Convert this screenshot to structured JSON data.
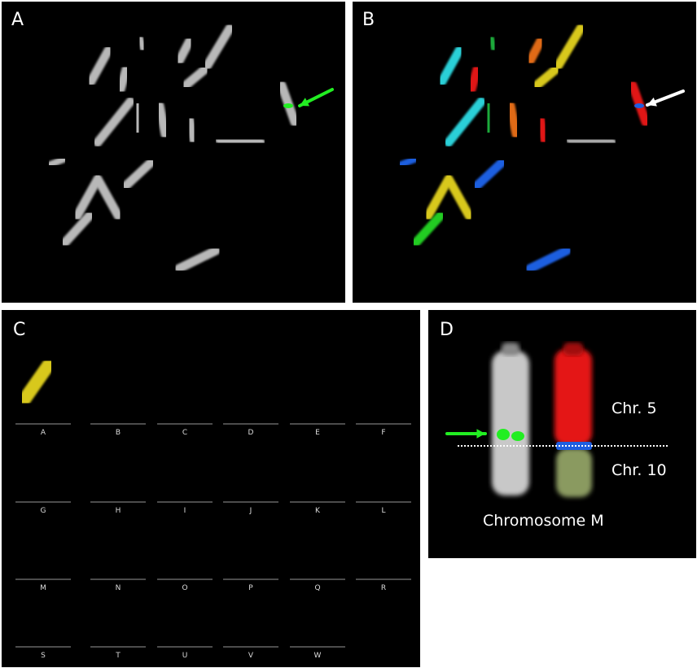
{
  "panels": {
    "a": {
      "label": "A",
      "arrow_color": "#22ee22"
    },
    "b": {
      "label": "B",
      "arrow_color": "#ffffff"
    },
    "c": {
      "label": "C",
      "karyotype": [
        {
          "label": "A",
          "colors": [
            "#d8c81a"
          ]
        },
        {
          "label": "B",
          "colors": [
            "#2ad0d8"
          ]
        },
        {
          "label": "C",
          "colors": [
            "#5a1e1e",
            "#1e6ad8"
          ]
        },
        {
          "label": "D",
          "colors": [
            "#2ad0d8"
          ]
        },
        {
          "label": "E",
          "colors": [
            "#1e5ee0",
            "#b0b0b0",
            "#22cc22"
          ]
        },
        {
          "label": "F",
          "colors": [
            "#a8a8a8"
          ]
        },
        {
          "label": "G",
          "colors": [
            "#22cc22"
          ]
        },
        {
          "label": "H",
          "colors": [
            "#4a2a2a",
            "#9ab818"
          ]
        },
        {
          "label": "I",
          "colors": [
            "#9ab818"
          ]
        },
        {
          "label": "J",
          "colors": [
            "#a8a8a8",
            "#22cc22"
          ]
        },
        {
          "label": "K",
          "colors": [
            "#a8b070",
            "#1e5ee0",
            "#3a2020"
          ]
        },
        {
          "label": "L",
          "colors": [
            "#e01818"
          ]
        },
        {
          "label": "M",
          "colors": [
            "#e01818",
            "#1e5ee0",
            "#7a8a50"
          ]
        },
        {
          "label": "N",
          "colors": [
            "#e06a14",
            "#b0b0b0"
          ]
        },
        {
          "label": "O",
          "colors": [
            "#e06a14",
            "#1e5ee0",
            "#e01818"
          ]
        },
        {
          "label": "P",
          "colors": [
            "#e06a14"
          ]
        },
        {
          "label": "Q",
          "colors": [
            "#1eaa3a"
          ]
        },
        {
          "label": "R",
          "colors": [
            "#22cc22",
            "#4a2a2a"
          ]
        },
        {
          "label": "S",
          "colors": [
            "#1eaa3a"
          ]
        },
        {
          "label": "T",
          "colors": []
        },
        {
          "label": "U",
          "colors": []
        },
        {
          "label": "V",
          "colors": []
        },
        {
          "label": "W",
          "colors": []
        }
      ]
    },
    "d": {
      "label": "D",
      "chr5_label": "Chr. 5",
      "chr10_label": "Chr. 10",
      "caption": "Chromosome M",
      "arrow_color": "#22ee22"
    }
  }
}
